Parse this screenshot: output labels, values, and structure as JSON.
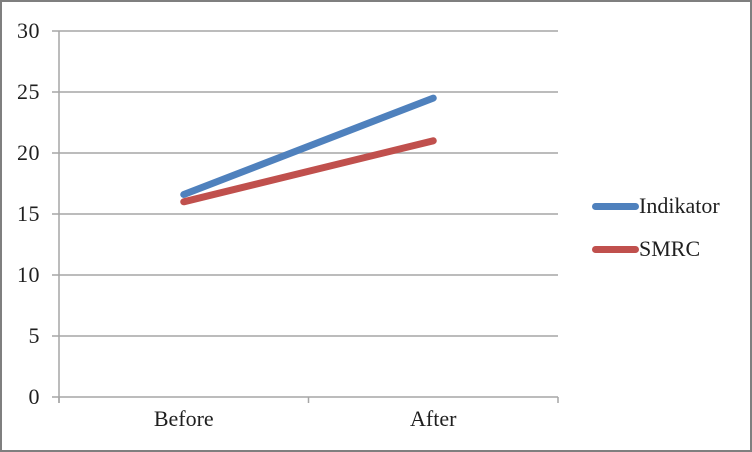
{
  "chart_data": {
    "type": "line",
    "categories": [
      "Before",
      "After"
    ],
    "series": [
      {
        "name": "Indikator",
        "values": [
          16.6,
          24.5
        ],
        "color": "#4F81BD"
      },
      {
        "name": "SMRC",
        "values": [
          16,
          21
        ],
        "color": "#C0504D"
      }
    ],
    "title": "",
    "xlabel": "",
    "ylabel": "",
    "ylim": [
      0,
      30
    ],
    "yticks": [
      0,
      5,
      10,
      15,
      20,
      25,
      30
    ],
    "grid": true,
    "legend_position": "right"
  },
  "colors": {
    "grid": "#a6a6a6",
    "axis": "#a6a6a6",
    "text": "#1f1f1f",
    "frame_border": "#7f7f7f",
    "background": "#ffffff"
  }
}
